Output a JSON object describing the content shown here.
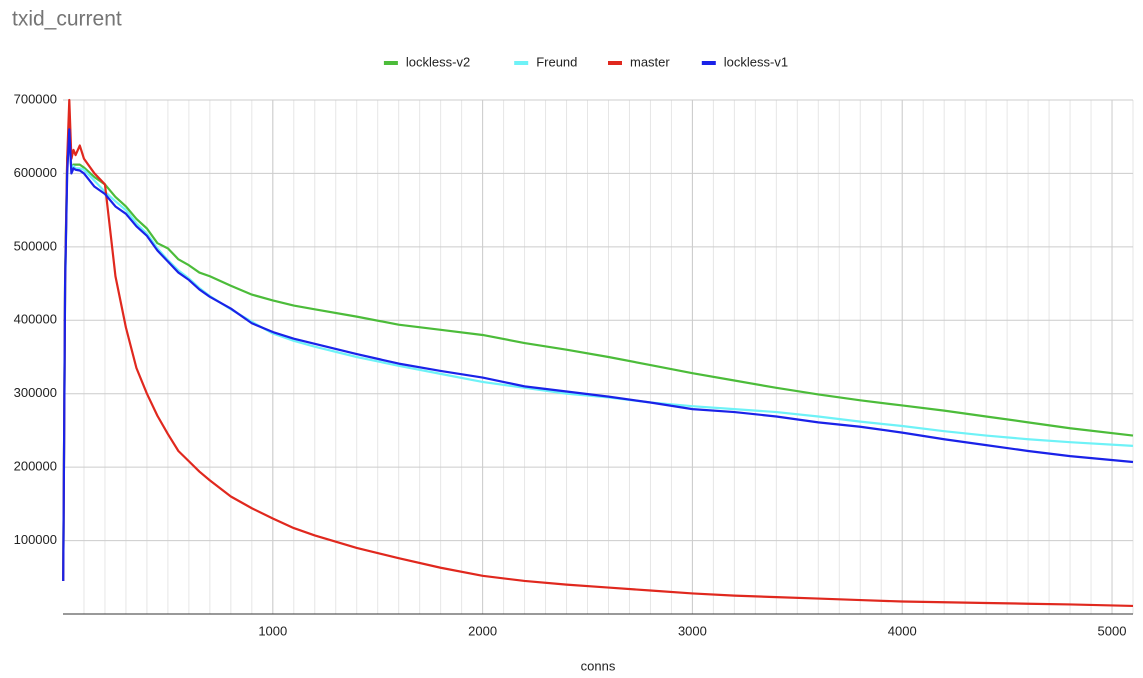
{
  "chart_data": {
    "type": "line",
    "title": "txid_current",
    "x_label": "conns",
    "x": [
      1,
      10,
      20,
      30,
      40,
      50,
      60,
      80,
      100,
      150,
      200,
      250,
      300,
      350,
      400,
      450,
      500,
      550,
      600,
      650,
      700,
      800,
      900,
      1000,
      1100,
      1200,
      1400,
      1600,
      1800,
      2000,
      2200,
      2400,
      2600,
      2800,
      3000,
      3200,
      3400,
      3600,
      3800,
      4000,
      4200,
      4400,
      4600,
      4800,
      5100
    ],
    "series": [
      {
        "name": "lockless-v2",
        "color": "#4cbc3a",
        "values": [
          45000,
          460000,
          620000,
          650000,
          605000,
          612000,
          612000,
          612000,
          608000,
          595000,
          585000,
          568000,
          555000,
          538000,
          525000,
          505000,
          498000,
          483000,
          475000,
          465000,
          460000,
          447000,
          435000,
          427000,
          420000,
          415000,
          405000,
          394000,
          387000,
          380000,
          369000,
          360000,
          350000,
          339000,
          328000,
          318000,
          308000,
          299000,
          291000,
          284000,
          277000,
          269000,
          261000,
          253000,
          243000
        ]
      },
      {
        "name": "Freund",
        "color": "#6ef2f7",
        "values": [
          45000,
          440000,
          610000,
          655000,
          605000,
          610000,
          607000,
          607000,
          605000,
          590000,
          575000,
          562000,
          550000,
          532000,
          518000,
          498000,
          482000,
          468000,
          457000,
          444000,
          433000,
          415000,
          398000,
          382000,
          372000,
          364000,
          350000,
          338000,
          327000,
          316000,
          308000,
          300000,
          295000,
          288000,
          283000,
          279000,
          275000,
          269000,
          262000,
          256000,
          249000,
          243000,
          238000,
          234000,
          229000
        ]
      },
      {
        "name": "master",
        "color": "#e0281e",
        "values": [
          45000,
          450000,
          620000,
          700000,
          620000,
          632000,
          625000,
          638000,
          620000,
          600000,
          585000,
          460000,
          390000,
          335000,
          300000,
          270000,
          245000,
          222000,
          208000,
          194000,
          182000,
          160000,
          144000,
          130000,
          117000,
          107000,
          90000,
          76000,
          63000,
          52000,
          45000,
          40000,
          36000,
          32000,
          28000,
          25000,
          23000,
          21000,
          19000,
          17000,
          16000,
          15000,
          14000,
          13000,
          11000
        ]
      },
      {
        "name": "lockless-v1",
        "color": "#1a22e8",
        "values": [
          45000,
          450000,
          600000,
          660000,
          600000,
          607000,
          605000,
          604000,
          600000,
          582000,
          572000,
          555000,
          545000,
          528000,
          515000,
          495000,
          480000,
          465000,
          455000,
          442000,
          432000,
          416000,
          396000,
          384000,
          375000,
          368000,
          354000,
          341000,
          331000,
          322000,
          310000,
          303000,
          296000,
          288000,
          279000,
          275000,
          269000,
          261000,
          255000,
          247000,
          238000,
          230000,
          222000,
          215000,
          207000
        ]
      }
    ],
    "xlim": [
      0,
      5100
    ],
    "xticks": [
      1000,
      2000,
      3000,
      4000,
      5000
    ],
    "ylim": [
      0,
      700000
    ],
    "yticks": [
      100000,
      200000,
      300000,
      400000,
      500000,
      600000,
      700000
    ],
    "grid": true,
    "minor_grid": true,
    "legend": "top"
  }
}
